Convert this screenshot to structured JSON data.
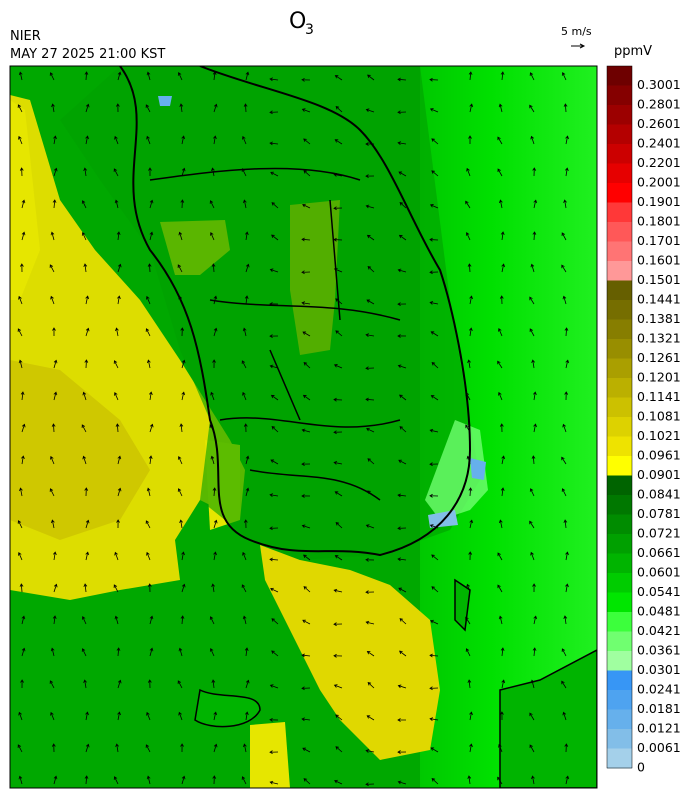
{
  "header": {
    "title": "O",
    "title_subscript": "3",
    "agency": "NIER",
    "datetime": "MAY 27 2025 21:00 KST"
  },
  "wind_legend": {
    "label": "5 m/s"
  },
  "colorbar": {
    "unit": "ppmV",
    "levels": [
      {
        "value": 0.3001,
        "color": "#6e0000"
      },
      {
        "value": 0.2801,
        "color": "#850000"
      },
      {
        "value": 0.2601,
        "color": "#9c0000"
      },
      {
        "value": 0.2401,
        "color": "#b40000"
      },
      {
        "value": 0.2201,
        "color": "#cc0000"
      },
      {
        "value": 0.2001,
        "color": "#e60000"
      },
      {
        "value": 0.1901,
        "color": "#ff0000"
      },
      {
        "value": 0.1801,
        "color": "#ff3838"
      },
      {
        "value": 0.1701,
        "color": "#ff5858"
      },
      {
        "value": 0.1601,
        "color": "#ff7474"
      },
      {
        "value": 0.1501,
        "color": "#ff9898"
      },
      {
        "value": 0.1441,
        "color": "#665f00"
      },
      {
        "value": 0.1381,
        "color": "#766e00"
      },
      {
        "value": 0.1321,
        "color": "#877e00"
      },
      {
        "value": 0.1261,
        "color": "#988e00"
      },
      {
        "value": 0.1201,
        "color": "#aa9f00"
      },
      {
        "value": 0.1141,
        "color": "#bbb000"
      },
      {
        "value": 0.1081,
        "color": "#ccc100"
      },
      {
        "value": 0.1021,
        "color": "#ddd200"
      },
      {
        "value": 0.0961,
        "color": "#eee300"
      },
      {
        "value": 0.0901,
        "color": "#ffff00"
      },
      {
        "value": 0.0841,
        "color": "#006400"
      },
      {
        "value": 0.0781,
        "color": "#007800"
      },
      {
        "value": 0.0721,
        "color": "#008c00"
      },
      {
        "value": 0.0661,
        "color": "#00a000"
      },
      {
        "value": 0.0601,
        "color": "#00b400"
      },
      {
        "value": 0.0541,
        "color": "#00cc00"
      },
      {
        "value": 0.0481,
        "color": "#00e600"
      },
      {
        "value": 0.0421,
        "color": "#3cff3c"
      },
      {
        "value": 0.0361,
        "color": "#70ff70"
      },
      {
        "value": 0.0301,
        "color": "#a0ffa0"
      },
      {
        "value": 0.0241,
        "color": "#3796f5"
      },
      {
        "value": 0.0181,
        "color": "#4ea3f0"
      },
      {
        "value": 0.0121,
        "color": "#66b0ec"
      },
      {
        "value": 0.0061,
        "color": "#82bee8"
      },
      {
        "value": 0,
        "color": "#a4d0ea"
      }
    ]
  }
}
